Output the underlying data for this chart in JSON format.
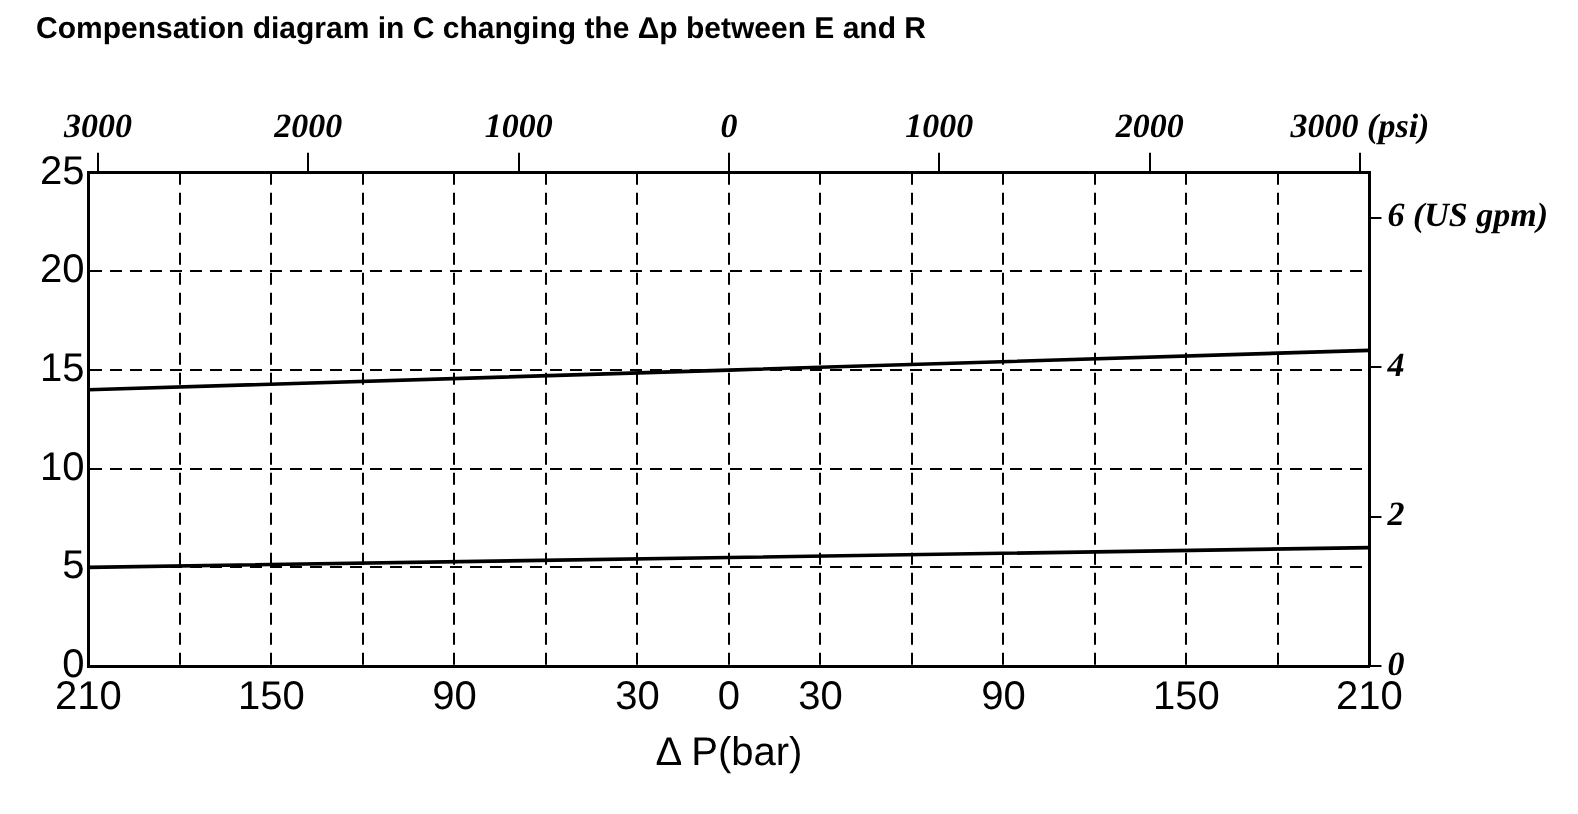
{
  "chart_data": {
    "type": "line",
    "title": "Compensation diagram in C changing the Δp between E and R",
    "xlabel": "Δ P(bar)",
    "x": [
      -210,
      0,
      210
    ],
    "series": [
      {
        "color": "#000000",
        "values": [
          14,
          15,
          16
        ]
      },
      {
        "color": "#000000",
        "values": [
          5,
          5.5,
          6
        ]
      }
    ],
    "xlim": [
      -210,
      210
    ],
    "xticks": [
      {
        "value": -210,
        "label": "210"
      },
      {
        "value": -180,
        "label": null
      },
      {
        "value": -150,
        "label": "150"
      },
      {
        "value": -120,
        "label": null
      },
      {
        "value": -90,
        "label": "90"
      },
      {
        "value": -60,
        "label": null
      },
      {
        "value": -30,
        "label": "30"
      },
      0,
      30,
      {
        "value": 60,
        "label": null
      },
      90,
      {
        "value": 120,
        "label": null
      },
      150,
      {
        "value": 180,
        "label": null
      },
      210
    ],
    "x2lim": [
      -3045,
      3045
    ],
    "x2ticks": [
      {
        "value": -3000,
        "label": "3000"
      },
      {
        "value": -2000,
        "label": "2000"
      },
      {
        "value": -1000,
        "label": "1000"
      },
      0,
      1000,
      2000,
      {
        "value": 3000,
        "label": "3000 (psi)"
      }
    ],
    "ylim": [
      0,
      25
    ],
    "yticks": [
      0,
      5,
      10,
      15,
      20,
      25
    ],
    "y2lim": [
      0,
      6.6
    ],
    "y2ticks": [
      0,
      2,
      4,
      {
        "value": 6,
        "label": "6 (US gpm)"
      }
    ],
    "grid": true,
    "marker": "none",
    "line_style": "solid",
    "legend": false
  }
}
